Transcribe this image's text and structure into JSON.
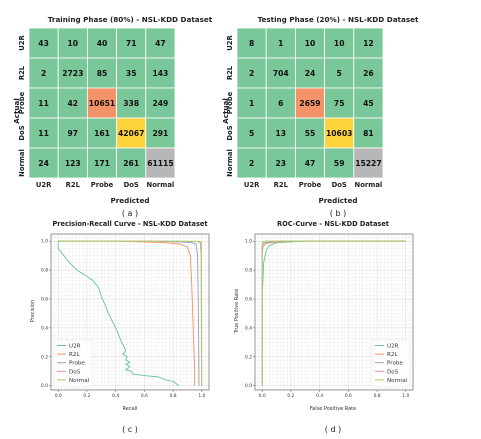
{
  "chart_data": [
    {
      "type": "heatmap",
      "title": "Training Phase (80%) - NSL-KDD Dataset",
      "xlabel": "Predicted",
      "ylabel": "Actual",
      "caption": "( a )",
      "x_categories": [
        "U2R",
        "R2L",
        "Probe",
        "DoS",
        "Normal"
      ],
      "y_categories": [
        "U2R",
        "R2L",
        "Probe",
        "DoS",
        "Normal"
      ],
      "matrix": [
        [
          43,
          10,
          40,
          71,
          47
        ],
        [
          2,
          2723,
          85,
          35,
          143
        ],
        [
          11,
          42,
          10651,
          338,
          249
        ],
        [
          11,
          97,
          161,
          42067,
          291
        ],
        [
          24,
          123,
          171,
          261,
          61115
        ]
      ],
      "highlight_colors": {
        "Probe": "#f4926a",
        "DoS": "#ffd43b",
        "Normal": "#b7b7b7"
      },
      "base_color": "#7ac79a"
    },
    {
      "type": "heatmap",
      "title": "Testing Phase (20%) - NSL-KDD Dataset",
      "xlabel": "Predicted",
      "ylabel": "Actual",
      "caption": "( b )",
      "x_categories": [
        "U2R",
        "R2L",
        "Probe",
        "DoS",
        "Normal"
      ],
      "y_categories": [
        "U2R",
        "R2L",
        "Probe",
        "DoS",
        "Normal"
      ],
      "matrix": [
        [
          8,
          1,
          10,
          10,
          12
        ],
        [
          2,
          704,
          24,
          5,
          26
        ],
        [
          1,
          6,
          2659,
          75,
          45
        ],
        [
          5,
          13,
          55,
          10603,
          81
        ],
        [
          2,
          23,
          47,
          59,
          15227
        ]
      ],
      "highlight_colors": {
        "Probe": "#f4926a",
        "DoS": "#ffd43b",
        "Normal": "#b7b7b7"
      },
      "base_color": "#7ac79a"
    },
    {
      "type": "line",
      "title": "Precision-Recall Curve - NSL-KDD Dataset",
      "xlabel": "Recall",
      "ylabel": "Precision",
      "caption": "( c )",
      "xlim": [
        -0.05,
        1.05
      ],
      "ylim": [
        -0.03,
        1.05
      ],
      "xticks": [
        0.0,
        0.2,
        0.4,
        0.6,
        0.8,
        1.0
      ],
      "yticks": [
        0.0,
        0.2,
        0.4,
        0.6,
        0.8,
        1.0
      ],
      "grid": true,
      "legend_position": "bottom-left",
      "series": [
        {
          "name": "U2R",
          "color": "#66c2a5",
          "x": [
            0.0,
            0.0,
            0.04,
            0.08,
            0.13,
            0.18,
            0.24,
            0.28,
            0.3,
            0.33,
            0.35,
            0.38,
            0.41,
            0.43,
            0.44,
            0.46,
            0.47,
            0.45,
            0.48,
            0.47,
            0.5,
            0.47,
            0.5,
            0.47,
            0.51,
            0.52,
            0.6,
            0.7,
            0.75,
            0.8,
            0.84
          ],
          "y": [
            1.0,
            0.95,
            0.9,
            0.85,
            0.8,
            0.77,
            0.73,
            0.68,
            0.62,
            0.55,
            0.5,
            0.44,
            0.38,
            0.33,
            0.3,
            0.27,
            0.24,
            0.22,
            0.2,
            0.18,
            0.16,
            0.15,
            0.13,
            0.11,
            0.1,
            0.08,
            0.07,
            0.06,
            0.04,
            0.03,
            0.0
          ]
        },
        {
          "name": "R2L",
          "color": "#fc8d62",
          "x": [
            0.0,
            0.4,
            0.6,
            0.75,
            0.85,
            0.9,
            0.92,
            0.93,
            0.94,
            0.95,
            0.95
          ],
          "y": [
            1.0,
            1.0,
            0.995,
            0.99,
            0.98,
            0.96,
            0.9,
            0.7,
            0.4,
            0.1,
            0.0
          ]
        },
        {
          "name": "Probe",
          "color": "#8da0cb",
          "x": [
            0.0,
            0.6,
            0.85,
            0.93,
            0.96,
            0.97,
            0.975,
            0.98,
            0.98
          ],
          "y": [
            1.0,
            1.0,
            0.995,
            0.99,
            0.98,
            0.9,
            0.6,
            0.1,
            0.0
          ]
        },
        {
          "name": "DoS",
          "color": "#e78ac3",
          "x": [
            0.0,
            0.8,
            0.97,
            0.99,
            0.995,
            0.997,
            0.998
          ],
          "y": [
            1.0,
            1.0,
            0.997,
            0.99,
            0.9,
            0.3,
            0.0
          ]
        },
        {
          "name": "Normal",
          "color": "#a6d854",
          "x": [
            0.0,
            0.9,
            0.99,
            0.997,
            0.999,
            1.0
          ],
          "y": [
            1.0,
            1.0,
            0.998,
            0.99,
            0.5,
            0.0
          ]
        }
      ]
    },
    {
      "type": "line",
      "title": "ROC-Curve - NSL-KDD Dataset",
      "xlabel": "False Positive Rate",
      "ylabel": "True Positive Rate",
      "caption": "( d )",
      "xlim": [
        -0.05,
        1.05
      ],
      "ylim": [
        -0.03,
        1.05
      ],
      "xticks": [
        0.0,
        0.2,
        0.4,
        0.6,
        0.8,
        1.0
      ],
      "yticks": [
        0.0,
        0.2,
        0.4,
        0.6,
        0.8,
        1.0
      ],
      "grid": true,
      "legend_position": "bottom-right",
      "series": [
        {
          "name": "U2R",
          "color": "#66c2a5",
          "x": [
            0.0,
            0.0,
            0.01,
            0.02,
            0.03,
            0.05,
            0.1,
            0.3,
            0.6,
            1.0
          ],
          "y": [
            0.0,
            0.6,
            0.85,
            0.9,
            0.94,
            0.97,
            0.99,
            1.0,
            1.0,
            1.0
          ]
        },
        {
          "name": "R2L",
          "color": "#fc8d62",
          "x": [
            0.0,
            0.0,
            0.005,
            0.02,
            0.05,
            0.2,
            1.0
          ],
          "y": [
            0.0,
            0.9,
            0.96,
            0.98,
            0.99,
            1.0,
            1.0
          ]
        },
        {
          "name": "Probe",
          "color": "#8da0cb",
          "x": [
            0.0,
            0.0,
            0.005,
            0.02,
            0.1,
            1.0
          ],
          "y": [
            0.0,
            0.95,
            0.98,
            0.99,
            1.0,
            1.0
          ]
        },
        {
          "name": "DoS",
          "color": "#e78ac3",
          "x": [
            0.0,
            0.0,
            0.003,
            0.02,
            1.0
          ],
          "y": [
            0.0,
            0.97,
            0.99,
            1.0,
            1.0
          ]
        },
        {
          "name": "Normal",
          "color": "#a6d854",
          "x": [
            0.0,
            0.0,
            0.003,
            0.02,
            1.0
          ],
          "y": [
            0.0,
            0.98,
            0.995,
            1.0,
            1.0
          ]
        }
      ]
    }
  ]
}
